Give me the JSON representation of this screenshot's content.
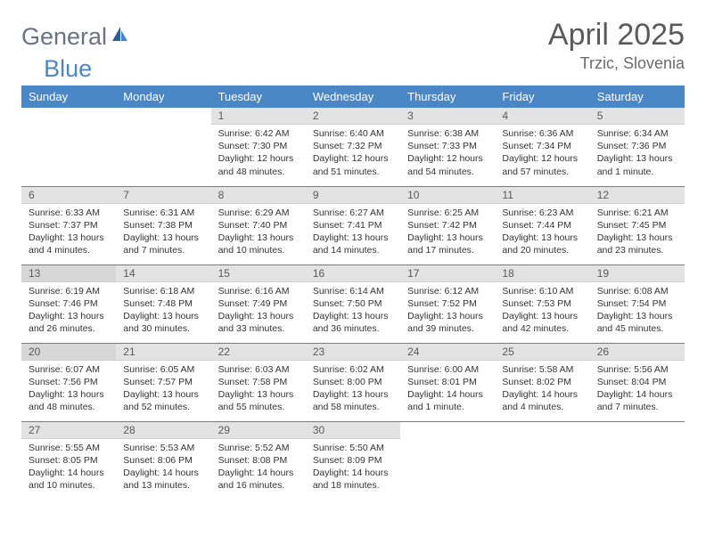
{
  "logo": {
    "text1": "General",
    "text2": "Blue"
  },
  "title": "April 2025",
  "location": "Trzic, Slovenia",
  "colors": {
    "header_bg": "#4a87c7",
    "header_text": "#ffffff",
    "daynum_bg": "#e3e3e3",
    "daynum_bg_shaded": "#d7d7d7",
    "text": "#333333",
    "logo_gray": "#6b7280",
    "logo_blue": "#4a87c7",
    "row_border": "#4a87c7"
  },
  "weekdays": [
    "Sunday",
    "Monday",
    "Tuesday",
    "Wednesday",
    "Thursday",
    "Friday",
    "Saturday"
  ],
  "weeks": [
    [
      {
        "num": "",
        "lines": []
      },
      {
        "num": "",
        "lines": []
      },
      {
        "num": "1",
        "lines": [
          "Sunrise: 6:42 AM",
          "Sunset: 7:30 PM",
          "Daylight: 12 hours",
          "and 48 minutes."
        ]
      },
      {
        "num": "2",
        "lines": [
          "Sunrise: 6:40 AM",
          "Sunset: 7:32 PM",
          "Daylight: 12 hours",
          "and 51 minutes."
        ]
      },
      {
        "num": "3",
        "lines": [
          "Sunrise: 6:38 AM",
          "Sunset: 7:33 PM",
          "Daylight: 12 hours",
          "and 54 minutes."
        ]
      },
      {
        "num": "4",
        "lines": [
          "Sunrise: 6:36 AM",
          "Sunset: 7:34 PM",
          "Daylight: 12 hours",
          "and 57 minutes."
        ]
      },
      {
        "num": "5",
        "lines": [
          "Sunrise: 6:34 AM",
          "Sunset: 7:36 PM",
          "Daylight: 13 hours",
          "and 1 minute."
        ]
      }
    ],
    [
      {
        "num": "6",
        "lines": [
          "Sunrise: 6:33 AM",
          "Sunset: 7:37 PM",
          "Daylight: 13 hours",
          "and 4 minutes."
        ]
      },
      {
        "num": "7",
        "lines": [
          "Sunrise: 6:31 AM",
          "Sunset: 7:38 PM",
          "Daylight: 13 hours",
          "and 7 minutes."
        ]
      },
      {
        "num": "8",
        "lines": [
          "Sunrise: 6:29 AM",
          "Sunset: 7:40 PM",
          "Daylight: 13 hours",
          "and 10 minutes."
        ]
      },
      {
        "num": "9",
        "lines": [
          "Sunrise: 6:27 AM",
          "Sunset: 7:41 PM",
          "Daylight: 13 hours",
          "and 14 minutes."
        ]
      },
      {
        "num": "10",
        "lines": [
          "Sunrise: 6:25 AM",
          "Sunset: 7:42 PM",
          "Daylight: 13 hours",
          "and 17 minutes."
        ]
      },
      {
        "num": "11",
        "lines": [
          "Sunrise: 6:23 AM",
          "Sunset: 7:44 PM",
          "Daylight: 13 hours",
          "and 20 minutes."
        ]
      },
      {
        "num": "12",
        "lines": [
          "Sunrise: 6:21 AM",
          "Sunset: 7:45 PM",
          "Daylight: 13 hours",
          "and 23 minutes."
        ]
      }
    ],
    [
      {
        "num": "13",
        "lines": [
          "Sunrise: 6:19 AM",
          "Sunset: 7:46 PM",
          "Daylight: 13 hours",
          "and 26 minutes."
        ],
        "shaded": true
      },
      {
        "num": "14",
        "lines": [
          "Sunrise: 6:18 AM",
          "Sunset: 7:48 PM",
          "Daylight: 13 hours",
          "and 30 minutes."
        ]
      },
      {
        "num": "15",
        "lines": [
          "Sunrise: 6:16 AM",
          "Sunset: 7:49 PM",
          "Daylight: 13 hours",
          "and 33 minutes."
        ]
      },
      {
        "num": "16",
        "lines": [
          "Sunrise: 6:14 AM",
          "Sunset: 7:50 PM",
          "Daylight: 13 hours",
          "and 36 minutes."
        ]
      },
      {
        "num": "17",
        "lines": [
          "Sunrise: 6:12 AM",
          "Sunset: 7:52 PM",
          "Daylight: 13 hours",
          "and 39 minutes."
        ]
      },
      {
        "num": "18",
        "lines": [
          "Sunrise: 6:10 AM",
          "Sunset: 7:53 PM",
          "Daylight: 13 hours",
          "and 42 minutes."
        ]
      },
      {
        "num": "19",
        "lines": [
          "Sunrise: 6:08 AM",
          "Sunset: 7:54 PM",
          "Daylight: 13 hours",
          "and 45 minutes."
        ]
      }
    ],
    [
      {
        "num": "20",
        "lines": [
          "Sunrise: 6:07 AM",
          "Sunset: 7:56 PM",
          "Daylight: 13 hours",
          "and 48 minutes."
        ],
        "shaded": true
      },
      {
        "num": "21",
        "lines": [
          "Sunrise: 6:05 AM",
          "Sunset: 7:57 PM",
          "Daylight: 13 hours",
          "and 52 minutes."
        ]
      },
      {
        "num": "22",
        "lines": [
          "Sunrise: 6:03 AM",
          "Sunset: 7:58 PM",
          "Daylight: 13 hours",
          "and 55 minutes."
        ]
      },
      {
        "num": "23",
        "lines": [
          "Sunrise: 6:02 AM",
          "Sunset: 8:00 PM",
          "Daylight: 13 hours",
          "and 58 minutes."
        ]
      },
      {
        "num": "24",
        "lines": [
          "Sunrise: 6:00 AM",
          "Sunset: 8:01 PM",
          "Daylight: 14 hours",
          "and 1 minute."
        ]
      },
      {
        "num": "25",
        "lines": [
          "Sunrise: 5:58 AM",
          "Sunset: 8:02 PM",
          "Daylight: 14 hours",
          "and 4 minutes."
        ]
      },
      {
        "num": "26",
        "lines": [
          "Sunrise: 5:56 AM",
          "Sunset: 8:04 PM",
          "Daylight: 14 hours",
          "and 7 minutes."
        ]
      }
    ],
    [
      {
        "num": "27",
        "lines": [
          "Sunrise: 5:55 AM",
          "Sunset: 8:05 PM",
          "Daylight: 14 hours",
          "and 10 minutes."
        ]
      },
      {
        "num": "28",
        "lines": [
          "Sunrise: 5:53 AM",
          "Sunset: 8:06 PM",
          "Daylight: 14 hours",
          "and 13 minutes."
        ]
      },
      {
        "num": "29",
        "lines": [
          "Sunrise: 5:52 AM",
          "Sunset: 8:08 PM",
          "Daylight: 14 hours",
          "and 16 minutes."
        ]
      },
      {
        "num": "30",
        "lines": [
          "Sunrise: 5:50 AM",
          "Sunset: 8:09 PM",
          "Daylight: 14 hours",
          "and 18 minutes."
        ]
      },
      {
        "num": "",
        "lines": []
      },
      {
        "num": "",
        "lines": []
      },
      {
        "num": "",
        "lines": []
      }
    ]
  ]
}
